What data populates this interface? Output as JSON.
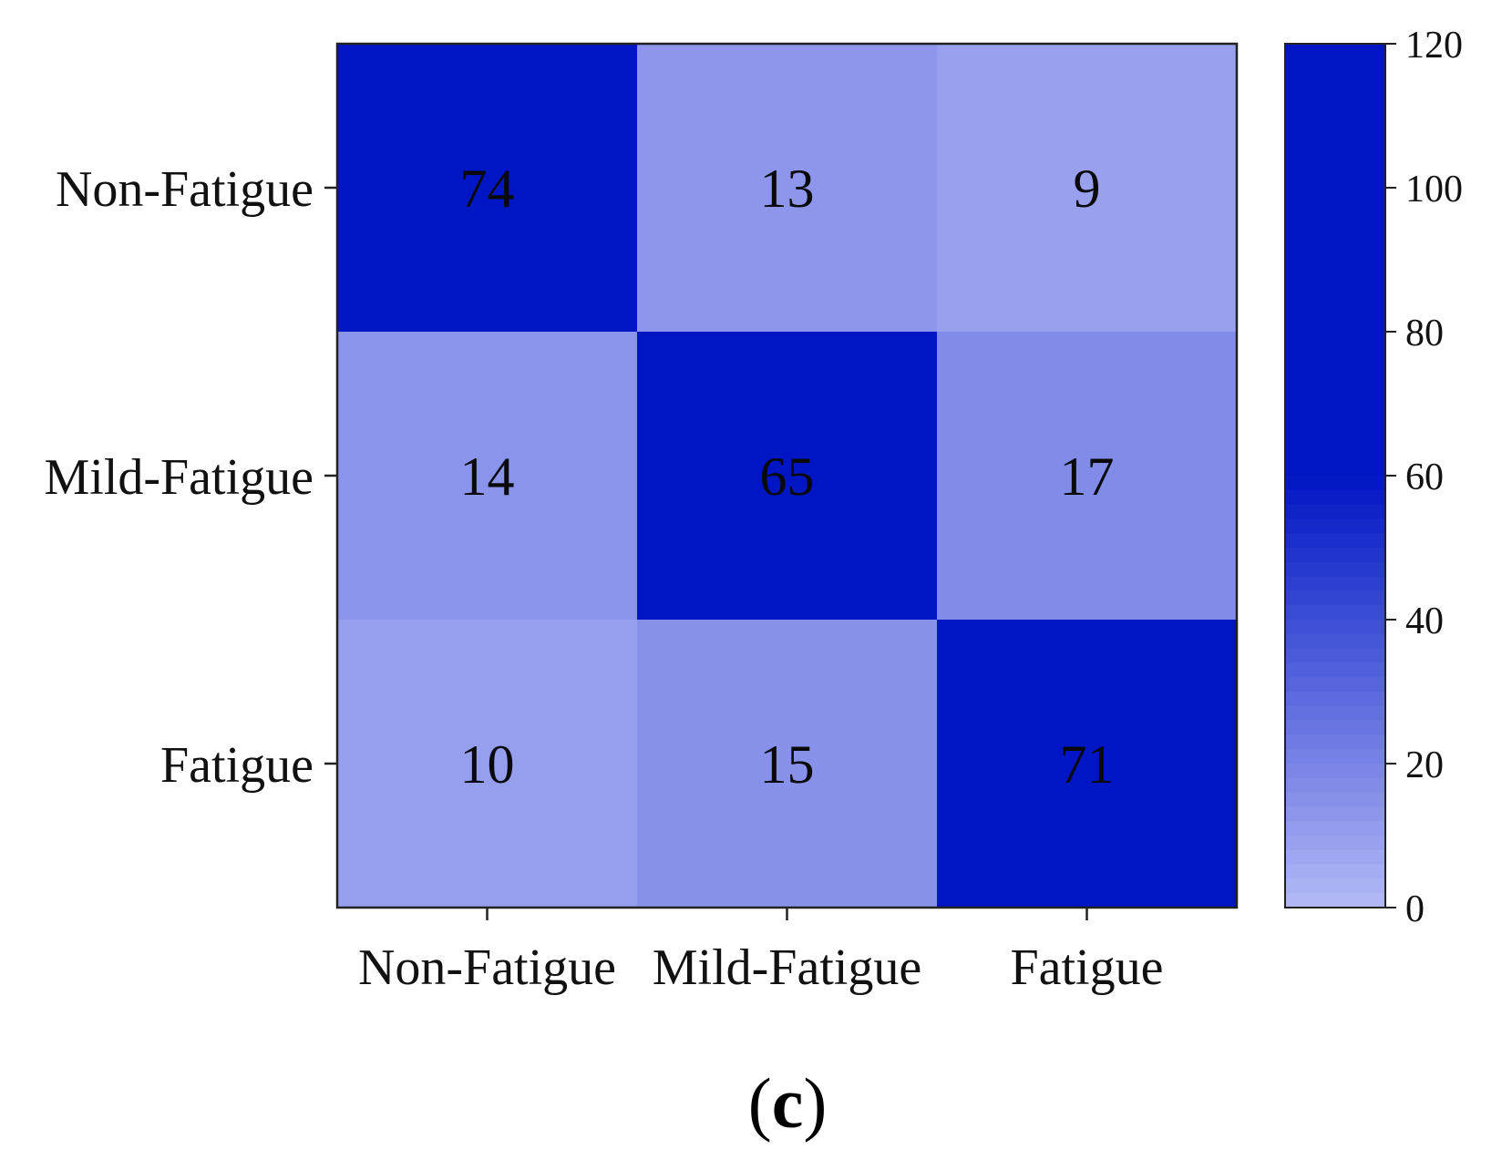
{
  "chart_data": {
    "type": "heatmap",
    "rows": [
      "Non-Fatigue",
      "Mild-Fatigue",
      "Fatigue"
    ],
    "columns": [
      "Non-Fatigue",
      "Mild-Fatigue",
      "Fatigue"
    ],
    "values": [
      [
        74,
        13,
        9
      ],
      [
        14,
        65,
        17
      ],
      [
        10,
        15,
        71
      ]
    ],
    "colorbar": {
      "min": 0,
      "max": 120,
      "ticks": [
        "0",
        "20",
        "40",
        "60",
        "80",
        "100",
        "120"
      ],
      "low_color": "#b4baf6",
      "high_color": "#0016c4",
      "saturation_value": 60
    },
    "title": "",
    "xlabel": "",
    "ylabel": ""
  },
  "panel_label": {
    "open": "(",
    "letter": "c",
    "close": ")"
  }
}
